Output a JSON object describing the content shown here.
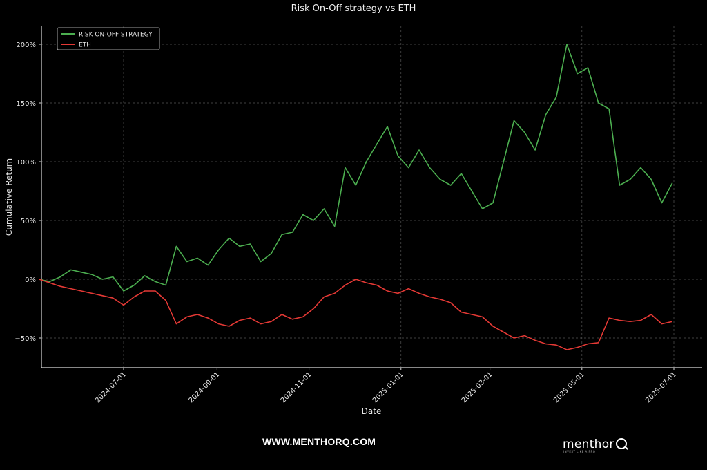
{
  "chart_data": {
    "type": "line",
    "title": "Risk On-Off strategy vs ETH",
    "xlabel": "Date",
    "ylabel": "Cumulative Return",
    "ylim": [
      -75,
      215
    ],
    "yticks": [
      -50,
      0,
      50,
      100,
      150,
      200
    ],
    "ytick_labels": [
      "−50%",
      "0%",
      "50%",
      "100%",
      "150%",
      "200%"
    ],
    "xticks": [
      "2024-07-01",
      "2024-09-01",
      "2024-11-01",
      "2025-01-01",
      "2025-03-01",
      "2025-05-01",
      "2025-07-01"
    ],
    "grid": true,
    "legend_position": "upper left",
    "x": [
      "2024-05-06",
      "2024-05-13",
      "2024-05-20",
      "2024-05-27",
      "2024-06-03",
      "2024-06-10",
      "2024-06-17",
      "2024-06-24",
      "2024-07-01",
      "2024-07-08",
      "2024-07-15",
      "2024-07-22",
      "2024-07-29",
      "2024-08-05",
      "2024-08-12",
      "2024-08-19",
      "2024-08-26",
      "2024-09-02",
      "2024-09-09",
      "2024-09-16",
      "2024-09-23",
      "2024-09-30",
      "2024-10-07",
      "2024-10-14",
      "2024-10-21",
      "2024-10-28",
      "2024-11-04",
      "2024-11-11",
      "2024-11-18",
      "2024-11-25",
      "2024-12-02",
      "2024-12-09",
      "2024-12-16",
      "2024-12-23",
      "2024-12-30",
      "2025-01-06",
      "2025-01-13",
      "2025-01-20",
      "2025-01-27",
      "2025-02-03",
      "2025-02-10",
      "2025-02-17",
      "2025-02-24",
      "2025-03-03",
      "2025-03-10",
      "2025-03-17",
      "2025-03-24",
      "2025-03-31",
      "2025-04-07",
      "2025-04-14",
      "2025-04-21",
      "2025-04-28",
      "2025-05-05",
      "2025-05-12",
      "2025-05-19",
      "2025-05-26",
      "2025-06-02",
      "2025-06-09",
      "2025-06-16",
      "2025-06-23",
      "2025-06-30"
    ],
    "series": [
      {
        "name": "RISK ON-OFF STRATEGY",
        "color": "#4caf50",
        "values": [
          0,
          -2,
          2,
          8,
          6,
          4,
          0,
          2,
          -10,
          -5,
          3,
          -2,
          -5,
          28,
          15,
          18,
          12,
          25,
          35,
          28,
          30,
          15,
          22,
          38,
          40,
          55,
          50,
          60,
          45,
          95,
          80,
          100,
          115,
          130,
          105,
          95,
          110,
          95,
          85,
          80,
          90,
          75,
          60,
          65,
          100,
          135,
          125,
          110,
          140,
          155,
          200,
          175,
          180,
          150,
          145,
          80,
          85,
          95,
          85,
          65,
          82
        ]
      },
      {
        "name": "ETH",
        "color": "#e53935",
        "values": [
          0,
          -3,
          -6,
          -8,
          -10,
          -12,
          -14,
          -16,
          -22,
          -15,
          -10,
          -10,
          -18,
          -38,
          -32,
          -30,
          -33,
          -38,
          -40,
          -35,
          -33,
          -38,
          -36,
          -30,
          -34,
          -32,
          -25,
          -15,
          -12,
          -5,
          0,
          -3,
          -5,
          -10,
          -12,
          -8,
          -12,
          -15,
          -17,
          -20,
          -28,
          -30,
          -32,
          -40,
          -45,
          -50,
          -48,
          -52,
          -55,
          -56,
          -60,
          -58,
          -55,
          -54,
          -33,
          -35,
          -36,
          -35,
          -30,
          -38,
          -36
        ]
      }
    ]
  },
  "footer": {
    "website": "WWW.MENTHORQ.COM",
    "logo_word": "menthor",
    "logo_tagline": "INVEST LIKE A PRO"
  }
}
